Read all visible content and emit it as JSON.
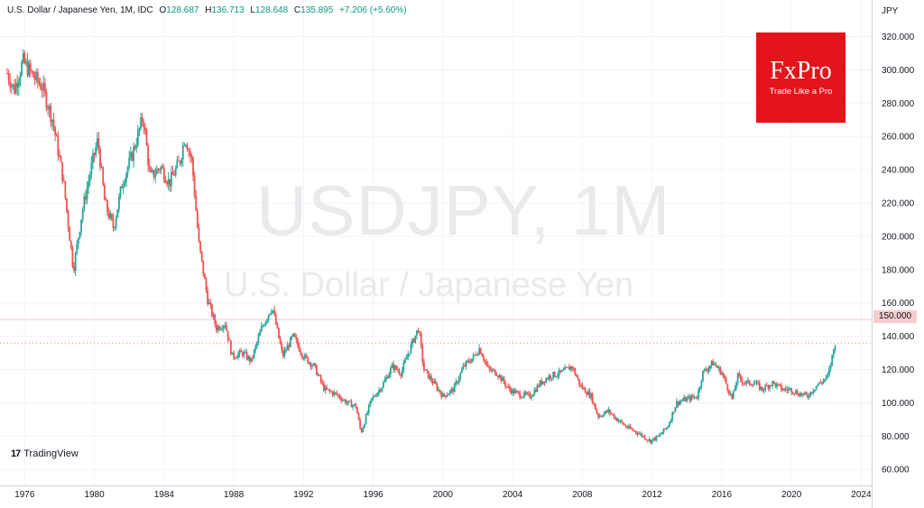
{
  "header": {
    "symbol": "U.S. Dollar / Japanese Yen, 1M, IDC",
    "open_label": "O",
    "open": "128.687",
    "high_label": "H",
    "high": "136.713",
    "low_label": "L",
    "low": "128.648",
    "close_label": "C",
    "close": "135.895",
    "change": "+7.206 (+5.60%)"
  },
  "watermark": {
    "ticker": "USDJPY, 1M",
    "description": "U.S. Dollar / Japanese Yen"
  },
  "logo": {
    "name": "FxPro",
    "tagline": "Trade Like a Pro"
  },
  "branding": {
    "mark": "17",
    "text": "TradingView"
  },
  "axis": {
    "unit": "JPY"
  },
  "badge": {
    "label": "150.000"
  },
  "colors": {
    "up": "#26a69a",
    "down": "#ef5350",
    "grid": "#f0f3fa",
    "level": "#f7cccd",
    "logo": "#e3141b"
  },
  "chart_data": {
    "type": "candlestick",
    "title": "USDJPY, 1M",
    "subtitle": "U.S. Dollar / Japanese Yen",
    "ylabel": "JPY",
    "ylim": [
      52,
      330
    ],
    "xlim": [
      1975.0,
      2024.6
    ],
    "y_ticks": [
      "60.000",
      "80.000",
      "100.000",
      "120.000",
      "140.000",
      "160.000",
      "180.000",
      "200.000",
      "220.000",
      "240.000",
      "260.000",
      "280.000",
      "300.000",
      "320.000"
    ],
    "x_ticks": [
      "1976",
      "1980",
      "1984",
      "1988",
      "1992",
      "1996",
      "2000",
      "2004",
      "2008",
      "2012",
      "2016",
      "2020",
      "2024"
    ],
    "horizontal_line": 150,
    "last_close": 135.895,
    "grid": true,
    "price_path": [
      [
        1975.0,
        298
      ],
      [
        1975.4,
        288
      ],
      [
        1975.9,
        305
      ],
      [
        1976.5,
        296
      ],
      [
        1977.0,
        290
      ],
      [
        1977.6,
        270
      ],
      [
        1978.2,
        235
      ],
      [
        1978.8,
        180
      ],
      [
        1979.3,
        215
      ],
      [
        1979.9,
        245
      ],
      [
        1980.2,
        258
      ],
      [
        1980.6,
        220
      ],
      [
        1981.1,
        205
      ],
      [
        1981.6,
        232
      ],
      [
        1982.2,
        250
      ],
      [
        1982.8,
        272
      ],
      [
        1983.2,
        235
      ],
      [
        1983.8,
        242
      ],
      [
        1984.3,
        232
      ],
      [
        1984.9,
        245
      ],
      [
        1985.2,
        260
      ],
      [
        1985.6,
        245
      ],
      [
        1986.0,
        195
      ],
      [
        1986.5,
        162
      ],
      [
        1987.0,
        145
      ],
      [
        1987.5,
        148
      ],
      [
        1987.9,
        128
      ],
      [
        1988.5,
        130
      ],
      [
        1989.0,
        125
      ],
      [
        1989.6,
        145
      ],
      [
        1990.2,
        158
      ],
      [
        1990.8,
        128
      ],
      [
        1991.4,
        140
      ],
      [
        1992.0,
        128
      ],
      [
        1992.6,
        122
      ],
      [
        1993.2,
        108
      ],
      [
        1993.9,
        105
      ],
      [
        1994.5,
        100
      ],
      [
        1995.0,
        98
      ],
      [
        1995.3,
        82
      ],
      [
        1995.9,
        102
      ],
      [
        1996.5,
        110
      ],
      [
        1997.1,
        122
      ],
      [
        1997.6,
        118
      ],
      [
        1998.2,
        135
      ],
      [
        1998.6,
        145
      ],
      [
        1998.9,
        120
      ],
      [
        1999.6,
        110
      ],
      [
        2000.0,
        104
      ],
      [
        2000.6,
        108
      ],
      [
        2001.2,
        122
      ],
      [
        2001.8,
        128
      ],
      [
        2002.1,
        133
      ],
      [
        2002.6,
        120
      ],
      [
        2003.1,
        118
      ],
      [
        2003.8,
        108
      ],
      [
        2004.4,
        105
      ],
      [
        2005.0,
        104
      ],
      [
        2005.6,
        112
      ],
      [
        2006.1,
        116
      ],
      [
        2006.8,
        118
      ],
      [
        2007.4,
        122
      ],
      [
        2007.9,
        110
      ],
      [
        2008.5,
        104
      ],
      [
        2008.9,
        92
      ],
      [
        2009.5,
        95
      ],
      [
        2010.0,
        90
      ],
      [
        2010.6,
        85
      ],
      [
        2011.2,
        82
      ],
      [
        2011.9,
        77
      ],
      [
        2012.4,
        80
      ],
      [
        2012.9,
        86
      ],
      [
        2013.4,
        100
      ],
      [
        2013.9,
        102
      ],
      [
        2014.6,
        104
      ],
      [
        2014.9,
        118
      ],
      [
        2015.5,
        124
      ],
      [
        2016.0,
        118
      ],
      [
        2016.6,
        102
      ],
      [
        2016.9,
        116
      ],
      [
        2017.3,
        112
      ],
      [
        2017.9,
        112
      ],
      [
        2018.3,
        108
      ],
      [
        2018.9,
        112
      ],
      [
        2019.5,
        108
      ],
      [
        2020.0,
        108
      ],
      [
        2020.3,
        106
      ],
      [
        2020.9,
        104
      ],
      [
        2021.4,
        110
      ],
      [
        2021.9,
        114
      ],
      [
        2022.1,
        116
      ],
      [
        2022.3,
        126
      ],
      [
        2022.5,
        136
      ]
    ]
  }
}
